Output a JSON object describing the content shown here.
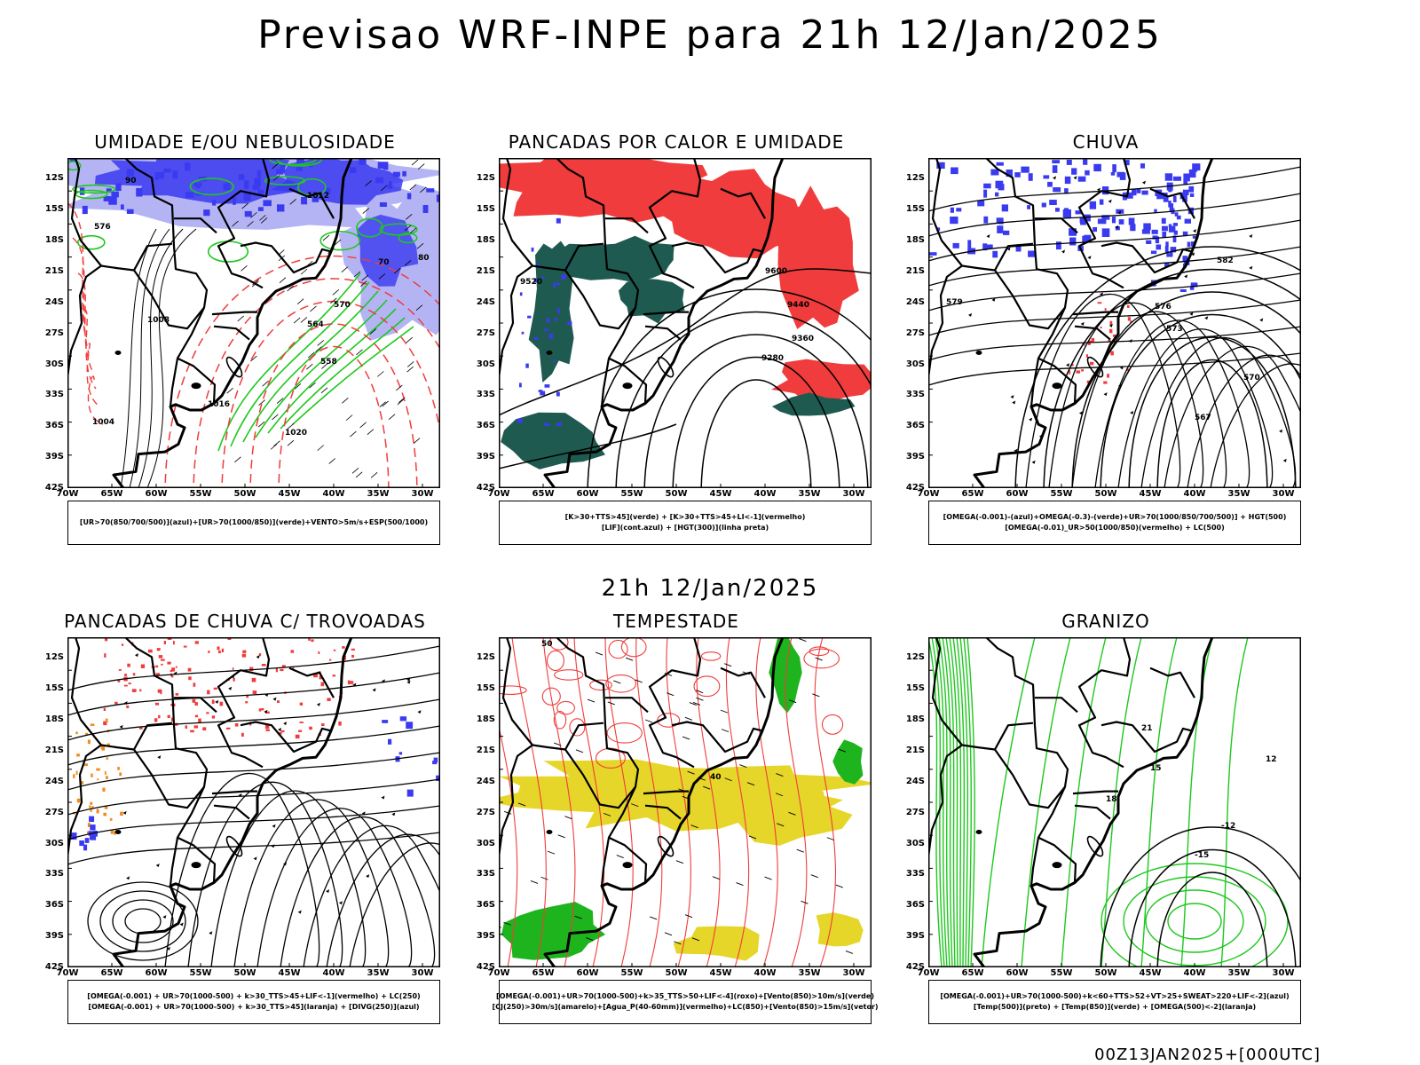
{
  "title": "Previsao WRF-INPE  para 21h 12/Jan/2025",
  "row_time": "21h 12/Jan/2025",
  "footer": "00Z13JAN2025+[000UTC]",
  "lat_labels": [
    "12S",
    "15S",
    "18S",
    "21S",
    "24S",
    "27S",
    "30S",
    "33S",
    "36S",
    "39S",
    "42S"
  ],
  "lon_labels": [
    "70W",
    "65W",
    "60W",
    "55W",
    "50W",
    "45W",
    "40W",
    "35W",
    "30W"
  ],
  "colors": {
    "blue": "#3a3af0",
    "light_blue": "#b4b4f5",
    "green": "#1ec81e",
    "red": "#f03c3c",
    "dark_teal": "#1e5a50",
    "yellow": "#e6d62a",
    "orange": "#f08c1e"
  },
  "panels": [
    {
      "id": "umidade",
      "title": "UMIDADE E/OU NEBULOSIDADE",
      "legend": [
        "[UR>70(850/700/500)](azul)+[UR>70(1000/850)](verde)+VENTO>5m/s+ESP(500/1000)"
      ],
      "labels": [
        "1012",
        "576",
        "1008",
        "1016",
        "1004",
        "1020",
        "570",
        "564",
        "558",
        "70",
        "80",
        "90"
      ]
    },
    {
      "id": "pancadas-calor",
      "title": "PANCADAS POR CALOR E UMIDADE",
      "legend": [
        "[K>30+TTS>45](verde) + [K>30+TTS>45+LI<-1](vermelho)",
        "[LIF](cont.azul) + [HGT(300)](linha preta)"
      ],
      "labels": [
        "9600",
        "9520",
        "9440",
        "9360",
        "9280"
      ]
    },
    {
      "id": "chuva",
      "title": "CHUVA",
      "legend": [
        "[OMEGA(-0.001)-(azul)+OMEGA(-0.3)-(verde)+UR>70(1000/850/700/500)] + HGT(500)",
        "[OMEGA(-0.01)_UR>50(1000/850)(vermelho) + LC(500)"
      ],
      "labels": [
        "582",
        "576",
        "573",
        "570",
        "567",
        "579"
      ]
    },
    {
      "id": "trovoadas",
      "title": "PANCADAS DE CHUVA C/ TROVOADAS",
      "legend": [
        "[OMEGA(-0.001) + UR>70(1000-500) + k>30_TTS>45+LIF<-1](vermelho) + LC(250)",
        "[OMEGA(-0.001) + UR>70(1000-500) + k>30_TTS>45](laranja) + [DIVG(250)](azul)"
      ],
      "labels": []
    },
    {
      "id": "tempestade",
      "title": "TEMPESTADE",
      "legend": [
        "[OMEGA(-0.001)+UR>70(1000-500)+k>35_TTS>50+LIF<-4](roxo)+[Vento(850)>10m/s](verde)",
        "[CJ(250)>30m/s](amarelo)+[Agua_P(40-60mm)](vermelho)+LC(850)+[Vento(850)>15m/s](vetor)"
      ],
      "labels": [
        "50",
        "40"
      ]
    },
    {
      "id": "granizo",
      "title": "GRANIZO",
      "legend": [
        "[OMEGA(-0.001)+UR>70(1000-500)+k<60+TTS>52+VT>25+SWEAT>220+LIF<-2](azul)",
        "[Temp(500)](preto) + [Temp(850)](verde) + [OMEGA(500)<-2](laranja)"
      ],
      "labels": [
        "-12",
        "-15",
        "12",
        "15",
        "18",
        "21"
      ]
    }
  ]
}
